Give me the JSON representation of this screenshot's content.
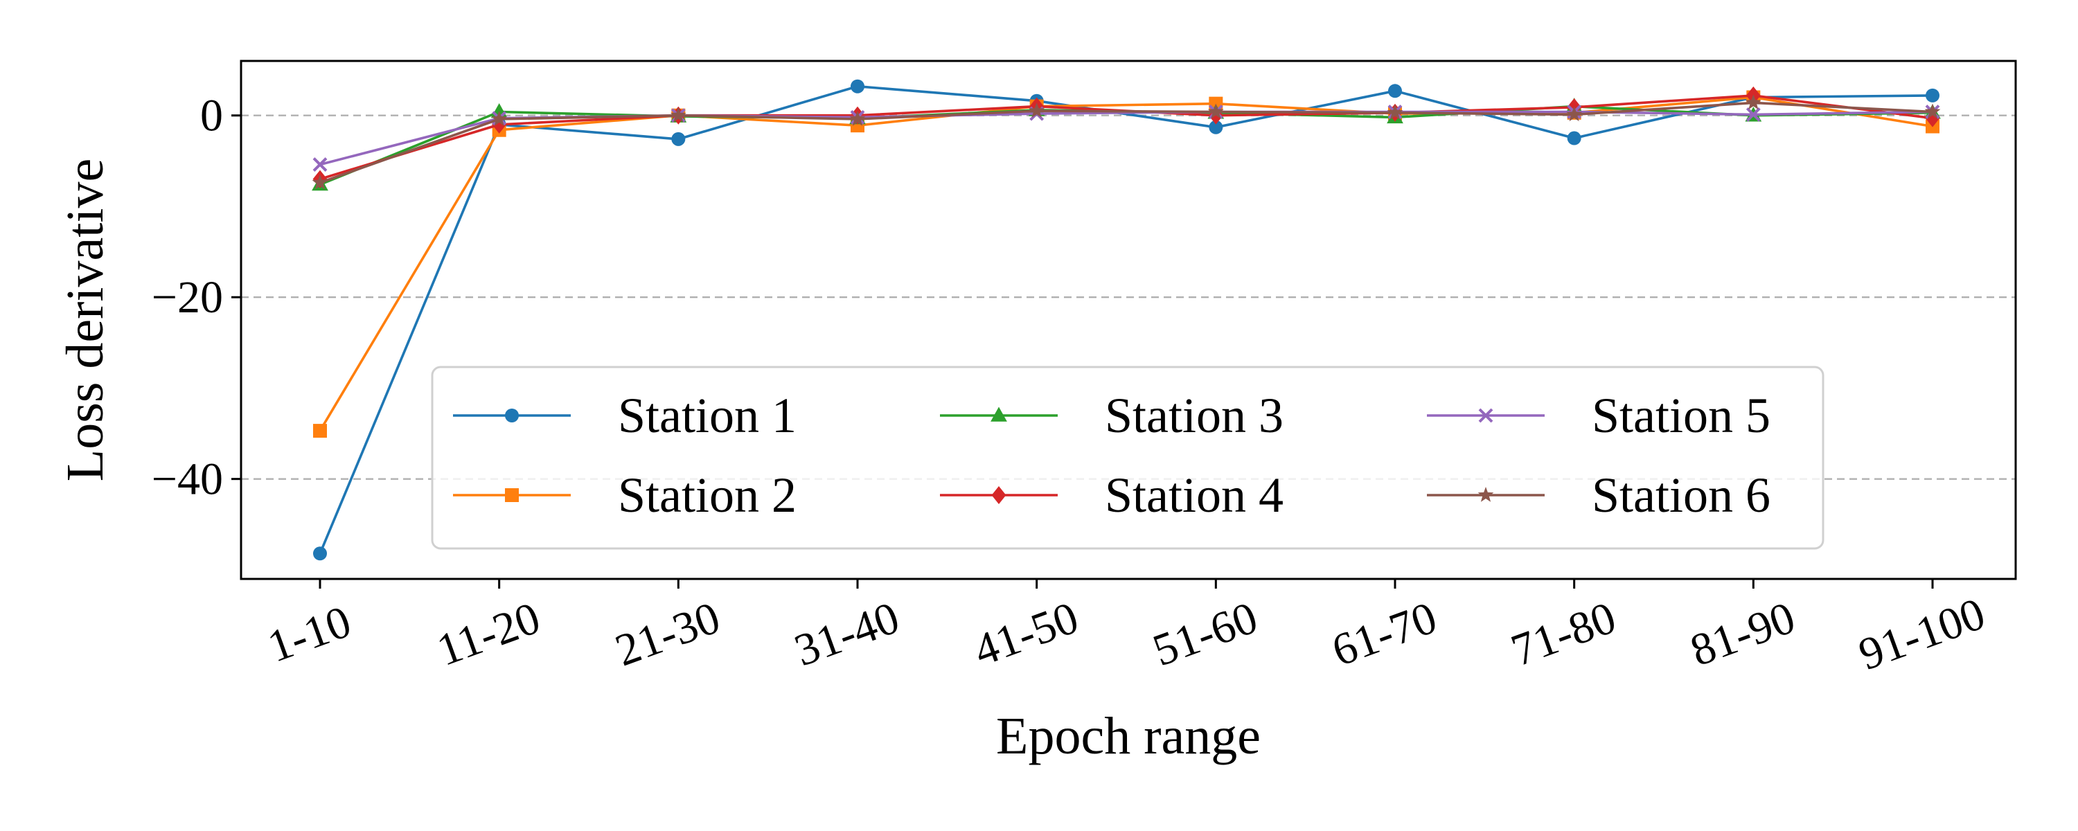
{
  "chart_data": {
    "type": "line",
    "xlabel": "Epoch range",
    "ylabel": "Loss derivative",
    "categories": [
      "1-10",
      "11-20",
      "21-30",
      "31-40",
      "41-50",
      "51-60",
      "61-70",
      "71-80",
      "81-90",
      "91-100"
    ],
    "ylim": [
      -51,
      6
    ],
    "yticks": [
      0,
      -20,
      -40
    ],
    "ytick_labels": [
      "0",
      "−20",
      "−40"
    ],
    "grid": "horizontal dashed at y ticks",
    "legend": "center, 3 columns",
    "series": [
      {
        "name": "Station 1",
        "color": "#1f77b4",
        "marker": "circle",
        "values": [
          -48.2,
          -1.0,
          -2.6,
          3.2,
          1.6,
          -1.3,
          2.7,
          -2.5,
          2.0,
          2.2
        ]
      },
      {
        "name": "Station 2",
        "color": "#ff7f0e",
        "marker": "square",
        "values": [
          -34.7,
          -1.6,
          0.0,
          -1.1,
          1.0,
          1.3,
          0.2,
          0.3,
          2.0,
          -1.2
        ]
      },
      {
        "name": "Station 3",
        "color": "#2ca02c",
        "marker": "triangle",
        "values": [
          -7.6,
          0.4,
          -0.1,
          -0.3,
          0.6,
          0.3,
          -0.2,
          1.0,
          0.0,
          0.3
        ]
      },
      {
        "name": "Station 4",
        "color": "#d62728",
        "marker": "diamond",
        "values": [
          -7.0,
          -1.0,
          0.0,
          0.0,
          1.0,
          0.0,
          0.3,
          0.9,
          2.2,
          -0.3
        ]
      },
      {
        "name": "Station 5",
        "color": "#9467bd",
        "marker": "x",
        "values": [
          -5.4,
          -0.3,
          0.0,
          -0.2,
          0.2,
          0.4,
          0.4,
          0.4,
          0.1,
          0.4
        ]
      },
      {
        "name": "Station 6",
        "color": "#8c564b",
        "marker": "star",
        "values": [
          -7.4,
          -0.4,
          0.0,
          -0.4,
          0.5,
          0.4,
          0.3,
          0.1,
          1.4,
          0.4
        ]
      }
    ]
  }
}
